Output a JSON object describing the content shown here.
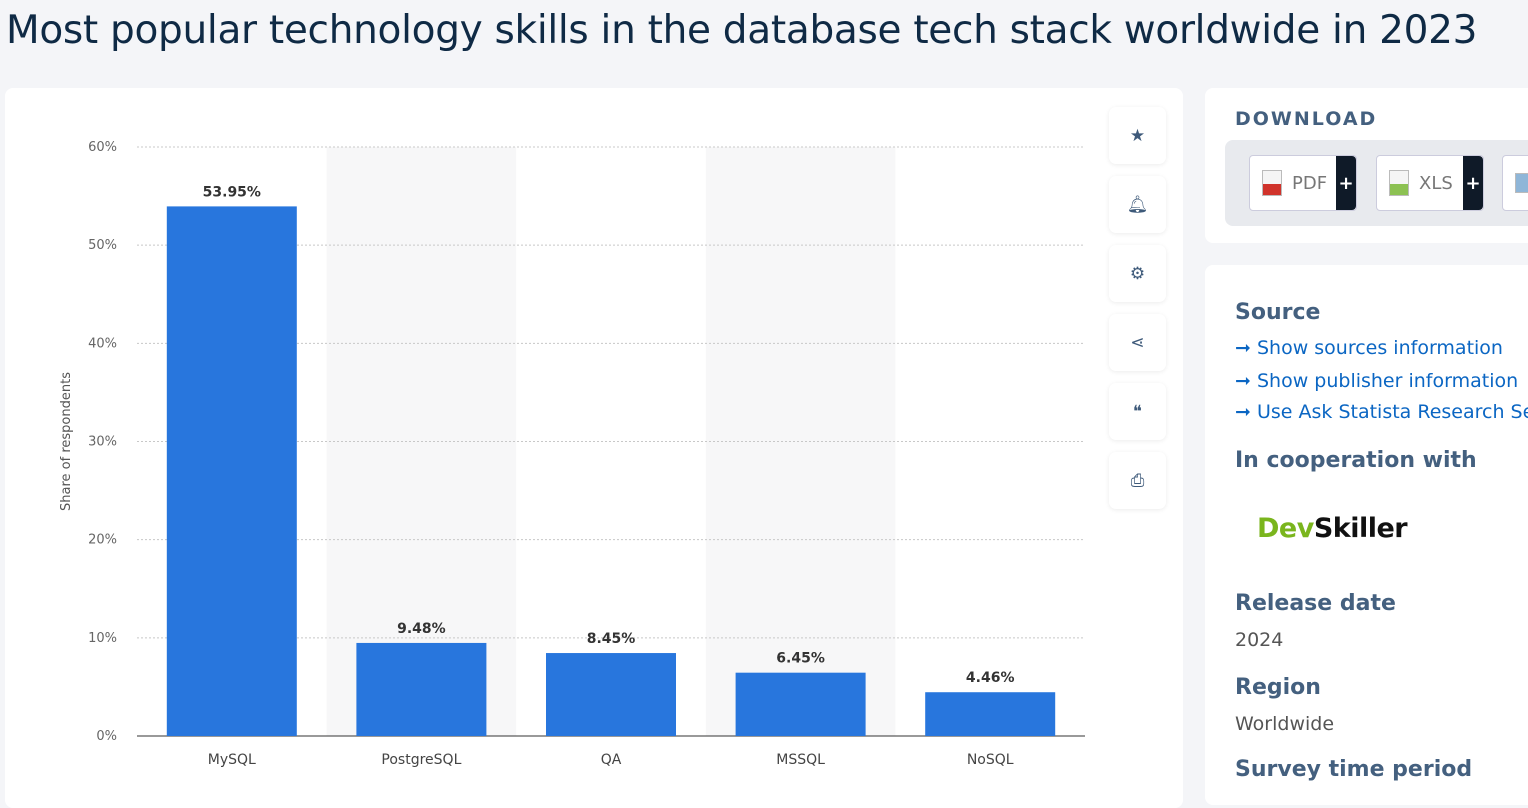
{
  "title": "Most popular technology skills in the database tech stack worldwide in 2023",
  "toolbar": [
    "star-icon",
    "bell-icon",
    "gear-icon",
    "share-icon",
    "quote-icon",
    "print-icon"
  ],
  "download": {
    "title": "DOWNLOAD",
    "buttons": [
      {
        "label": "PDF",
        "plus": "+",
        "color": "#d0332b"
      },
      {
        "label": "XLS",
        "plus": "+",
        "color": "#8cc152"
      }
    ]
  },
  "info": {
    "source_title": "Source",
    "links": [
      "Show sources information",
      "Show publisher information",
      "Use Ask Statista Research Se"
    ],
    "coop_title": "In cooperation with",
    "coop_logo": {
      "part1": "Dev",
      "part2": "Skiller"
    },
    "release_title": "Release date",
    "release": "2024",
    "region_title": "Region",
    "region": "Worldwide",
    "period_title": "Survey time period"
  },
  "chart_data": {
    "type": "bar",
    "title": "",
    "xlabel": "",
    "ylabel": "Share of respondents",
    "categories": [
      "MySQL",
      "PostgreSQL",
      "QA",
      "MSSQL",
      "NoSQL"
    ],
    "values": [
      53.95,
      9.48,
      8.45,
      6.45,
      4.46
    ],
    "data_labels": [
      "53.95%",
      "9.48%",
      "8.45%",
      "6.45%",
      "4.46%"
    ],
    "ylim": [
      0,
      60
    ],
    "yticks": [
      "0%",
      "10%",
      "20%",
      "30%",
      "40%",
      "50%",
      "60%"
    ],
    "grid": true,
    "bar_color": "#2876dd"
  }
}
